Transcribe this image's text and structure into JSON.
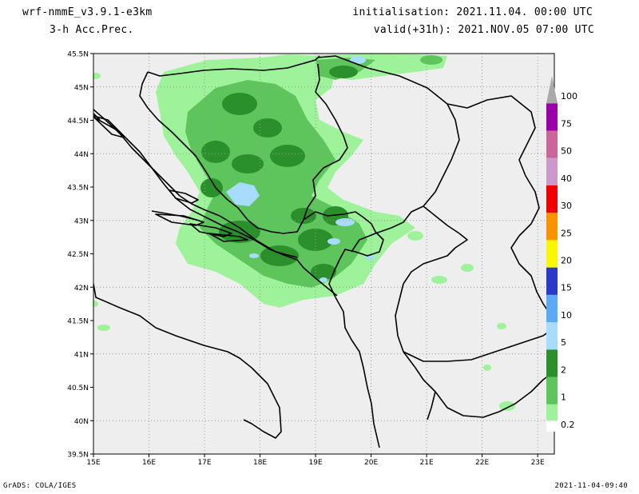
{
  "header": {
    "model": "wrf-nmmE_v3.9.1-e3km",
    "variable": "3-h Acc.Prec.",
    "init": "initialisation: 2021.11.04. 00:00 UTC",
    "valid": "valid(+31h): 2021.NOV.05 07:00 UTC"
  },
  "footer": {
    "credit": "GrADS: COLA/IGES",
    "timestamp": "2021-11-04-09:40"
  },
  "map": {
    "lat_labels": [
      "45.5N",
      "45N",
      "44.5N",
      "44N",
      "43.5N",
      "43N",
      "42.5N",
      "42N",
      "41.5N",
      "41N",
      "40.5N",
      "40N",
      "39.5N"
    ],
    "lon_labels": [
      "15E",
      "16E",
      "17E",
      "18E",
      "19E",
      "20E",
      "21E",
      "22E",
      "23E"
    ],
    "extent": {
      "lon_min": 15,
      "lon_max": 23.3,
      "lat_min": 39.5,
      "lat_max": 45.5
    },
    "colors": {
      "background": "#eeeeee",
      "border": "#000000",
      "grid": "#999999"
    }
  },
  "colorbar": {
    "levels": [
      "0.2",
      "1",
      "2",
      "5",
      "10",
      "15",
      "20",
      "25",
      "30",
      "40",
      "50",
      "75",
      "100"
    ],
    "colors": [
      "#9df29a",
      "#5dc55b",
      "#2b8f2b",
      "#a8dcff",
      "#5aaaf5",
      "#2b39c8",
      "#f8f800",
      "#f89400",
      "#f00000",
      "#cc99cc",
      "#cc6699",
      "#9900aa",
      "#aaaaaa"
    ]
  }
}
